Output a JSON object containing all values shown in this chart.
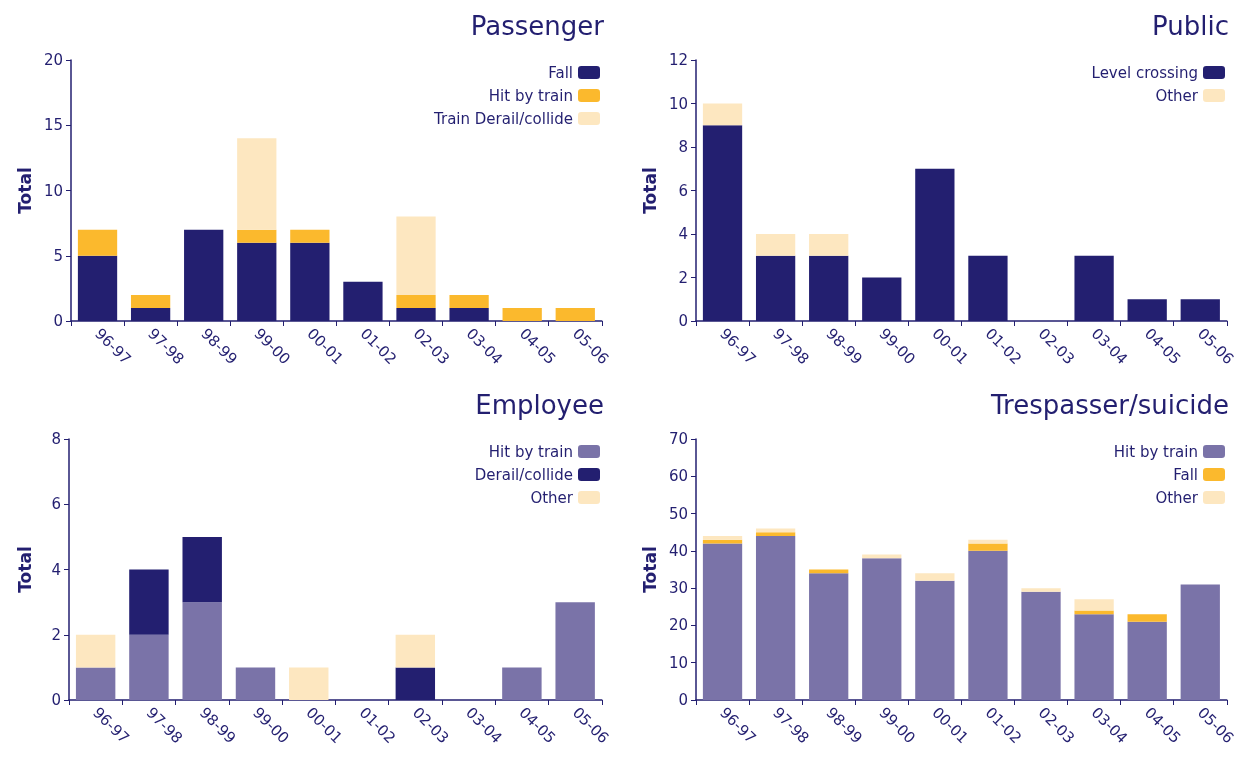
{
  "chart_data": [
    {
      "type": "bar",
      "title": "Passenger",
      "ylabel": "Total",
      "stacked": true,
      "legend": "top right",
      "categories": [
        "96-97",
        "97-98",
        "98-99",
        "99-00",
        "00-01",
        "01-02",
        "02-03",
        "03-04",
        "04-05",
        "05-06"
      ],
      "ylim": [
        0,
        20
      ],
      "yticks": [
        0,
        5,
        10,
        15,
        20
      ],
      "series": [
        {
          "name": "Fall",
          "color": "#231f70",
          "values": [
            5,
            1,
            7,
            6,
            6,
            3,
            1,
            1,
            0,
            0
          ]
        },
        {
          "name": "Hit by train",
          "color": "#fbb92d",
          "values": [
            2,
            1,
            0,
            1,
            1,
            0,
            1,
            1,
            1,
            1
          ]
        },
        {
          "name": "Train Derail/collide",
          "color": "#fde7c0",
          "values": [
            0,
            0,
            0,
            7,
            0,
            0,
            6,
            0,
            0,
            0
          ]
        }
      ]
    },
    {
      "type": "bar",
      "title": "Public",
      "ylabel": "Total",
      "stacked": true,
      "legend": "top right",
      "categories": [
        "96-97",
        "97-98",
        "98-99",
        "99-00",
        "00-01",
        "01-02",
        "02-03",
        "03-04",
        "04-05",
        "05-06"
      ],
      "ylim": [
        0,
        12
      ],
      "yticks": [
        0,
        2,
        4,
        6,
        8,
        10,
        12
      ],
      "series": [
        {
          "name": "Level crossing",
          "color": "#231f70",
          "values": [
            9,
            3,
            3,
            2,
            7,
            3,
            0,
            3,
            1,
            1
          ]
        },
        {
          "name": "Other",
          "color": "#fde7c0",
          "values": [
            1,
            1,
            1,
            0,
            0,
            0,
            0,
            0,
            0,
            0
          ]
        }
      ]
    },
    {
      "type": "bar",
      "title": "Employee",
      "ylabel": "Total",
      "stacked": true,
      "legend": "top right",
      "categories": [
        "96-97",
        "97-98",
        "98-99",
        "99-00",
        "00-01",
        "01-02",
        "02-03",
        "03-04",
        "04-05",
        "05-06"
      ],
      "ylim": [
        0,
        8
      ],
      "yticks": [
        0,
        2,
        4,
        6,
        8
      ],
      "series": [
        {
          "name": "Hit by train",
          "color": "#7a73a8",
          "values": [
            1,
            2,
            3,
            1,
            0,
            0,
            0,
            0,
            1,
            3
          ]
        },
        {
          "name": "Derail/collide",
          "color": "#231f70",
          "values": [
            0,
            2,
            2,
            0,
            0,
            0,
            1,
            0,
            0,
            0
          ]
        },
        {
          "name": "Other",
          "color": "#fde7c0",
          "values": [
            1,
            0,
            0,
            0,
            1,
            0,
            1,
            0,
            0,
            0
          ]
        }
      ]
    },
    {
      "type": "bar",
      "title": "Trespasser/suicide",
      "ylabel": "Total",
      "stacked": true,
      "legend": "top right",
      "categories": [
        "96-97",
        "97-98",
        "98-99",
        "99-00",
        "00-01",
        "01-02",
        "02-03",
        "03-04",
        "04-05",
        "05-06"
      ],
      "ylim": [
        0,
        70
      ],
      "yticks": [
        0,
        10,
        20,
        30,
        40,
        50,
        60,
        70
      ],
      "series": [
        {
          "name": "Hit by train",
          "color": "#7a73a8",
          "values": [
            42,
            44,
            34,
            38,
            32,
            40,
            29,
            23,
            21,
            31
          ]
        },
        {
          "name": "Fall",
          "color": "#fbb92d",
          "values": [
            1,
            1,
            1,
            0,
            0,
            2,
            0,
            1,
            2,
            0
          ]
        },
        {
          "name": "Other",
          "color": "#fde7c0",
          "values": [
            1,
            1,
            0,
            1,
            2,
            1,
            1,
            3,
            0,
            0
          ]
        }
      ]
    }
  ]
}
